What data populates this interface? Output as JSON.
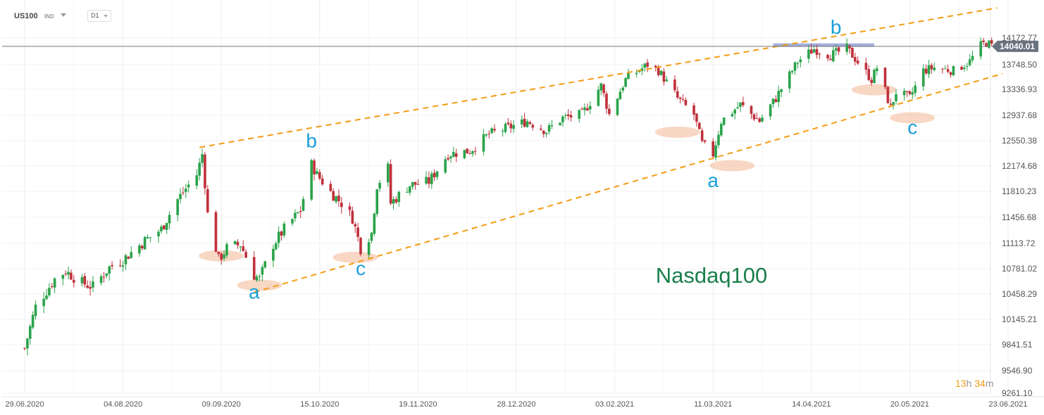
{
  "header": {
    "symbol": "US100",
    "type": "IND",
    "timeframe": "D1"
  },
  "countdown": {
    "hours": "13",
    "h_unit": "h",
    "minutes": "34",
    "m_unit": "m"
  },
  "chart_data": {
    "type": "candlestick",
    "instrument": "Nasdaq100",
    "current_price": "14040.01",
    "y_ticks": [
      "14172.77",
      "13748.50",
      "13336.93",
      "12937.68",
      "12550.38",
      "12174.68",
      "11810.23",
      "11456.68",
      "11113.72",
      "10781.02",
      "10458.29",
      "10145.21",
      "9841.51",
      "9546.90",
      "9261.10"
    ],
    "x_ticks": [
      "29.06.2020",
      "04.08.2020",
      "09.09.2020",
      "15.10.2020",
      "19.11.2020",
      "28.12.2020",
      "03.02.2021",
      "11.03.2021",
      "14.04.2021",
      "20.05.2021",
      "23.06.2021"
    ],
    "close_path": [
      [
        "2020-06-29",
        9800
      ],
      [
        "2020-07-03",
        10300
      ],
      [
        "2020-07-10",
        10650
      ],
      [
        "2020-07-14",
        10750
      ],
      [
        "2020-07-20",
        10600
      ],
      [
        "2020-07-24",
        10550
      ],
      [
        "2020-07-30",
        10800
      ],
      [
        "2020-08-04",
        10900
      ],
      [
        "2020-08-12",
        11150
      ],
      [
        "2020-08-18",
        11300
      ],
      [
        "2020-08-24",
        11700
      ],
      [
        "2020-08-31",
        12050
      ],
      [
        "2020-09-02",
        12350
      ],
      [
        "2020-09-04",
        11500
      ],
      [
        "2020-09-08",
        10900
      ],
      [
        "2020-09-11",
        11050
      ],
      [
        "2020-09-16",
        11100
      ],
      [
        "2020-09-21",
        10700
      ],
      [
        "2020-09-23",
        10650
      ],
      [
        "2020-09-28",
        11100
      ],
      [
        "2020-10-02",
        11300
      ],
      [
        "2020-10-08",
        11550
      ],
      [
        "2020-10-12",
        12200
      ],
      [
        "2020-10-14",
        12050
      ],
      [
        "2020-10-19",
        11800
      ],
      [
        "2020-10-23",
        11650
      ],
      [
        "2020-10-27",
        11450
      ],
      [
        "2020-10-30",
        11050
      ],
      [
        "2020-11-03",
        11250
      ],
      [
        "2020-11-05",
        11900
      ],
      [
        "2020-11-09",
        12150
      ],
      [
        "2020-11-10",
        11650
      ],
      [
        "2020-11-17",
        11900
      ],
      [
        "2020-11-24",
        11950
      ],
      [
        "2020-12-01",
        12350
      ],
      [
        "2020-12-09",
        12400
      ],
      [
        "2020-12-16",
        12650
      ],
      [
        "2020-12-23",
        12750
      ],
      [
        "2020-12-30",
        12850
      ],
      [
        "2021-01-06",
        12700
      ],
      [
        "2021-01-12",
        12900
      ],
      [
        "2021-01-19",
        12950
      ],
      [
        "2021-01-26",
        13400
      ],
      [
        "2021-01-29",
        12950
      ],
      [
        "2021-02-04",
        13500
      ],
      [
        "2021-02-12",
        13750
      ],
      [
        "2021-02-16",
        13650
      ],
      [
        "2021-02-23",
        13200
      ],
      [
        "2021-03-01",
        12950
      ],
      [
        "2021-03-04",
        12500
      ],
      [
        "2021-03-08",
        12350
      ],
      [
        "2021-03-11",
        12850
      ],
      [
        "2021-03-18",
        13100
      ],
      [
        "2021-03-25",
        12850
      ],
      [
        "2021-03-31",
        13200
      ],
      [
        "2021-04-08",
        13800
      ],
      [
        "2021-04-14",
        14000
      ],
      [
        "2021-04-20",
        13900
      ],
      [
        "2021-04-26",
        14000
      ],
      [
        "2021-04-29",
        13850
      ],
      [
        "2021-05-05",
        13500
      ],
      [
        "2021-05-07",
        13700
      ],
      [
        "2021-05-12",
        13050
      ],
      [
        "2021-05-14",
        13300
      ],
      [
        "2021-05-19",
        13200
      ],
      [
        "2021-05-24",
        13650
      ],
      [
        "2021-05-28",
        13700
      ],
      [
        "2021-06-04",
        13650
      ],
      [
        "2021-06-10",
        13800
      ],
      [
        "2021-06-14",
        14050
      ],
      [
        "2021-06-16",
        14100
      ],
      [
        "2021-06-18",
        14040
      ]
    ],
    "channel_lines": [
      {
        "name": "upper",
        "start": [
          "2020-09-01",
          12450
        ],
        "end": [
          "2021-06-20",
          14650
        ],
        "color": "#f39c12"
      },
      {
        "name": "lower",
        "start": [
          "2020-09-21",
          10480
        ],
        "end": [
          "2021-06-22",
          13600
        ],
        "color": "#f39c12"
      }
    ],
    "resistance": {
      "start": [
        "2021-03-30",
        14060
      ],
      "end": [
        "2021-05-06",
        14060
      ],
      "color": "#8e9bd6"
    },
    "highlights": [
      [
        "2020-09-09",
        10950
      ],
      [
        "2020-09-23",
        10570
      ],
      [
        "2020-10-28",
        10930
      ],
      [
        "2021-02-23",
        12680
      ],
      [
        "2021-03-15",
        12180
      ],
      [
        "2021-05-06",
        13330
      ],
      [
        "2021-05-20",
        12900
      ]
    ],
    "wave_labels": [
      {
        "text": "a",
        "date": "2020-09-21",
        "value": 10400
      },
      {
        "text": "b",
        "date": "2020-10-12",
        "value": 12450
      },
      {
        "text": "c",
        "date": "2020-10-30",
        "value": 10700
      },
      {
        "text": "a",
        "date": "2021-03-08",
        "value": 11870
      },
      {
        "text": "b",
        "date": "2021-04-22",
        "value": 14240
      },
      {
        "text": "c",
        "date": "2021-05-20",
        "value": 12650
      }
    ],
    "colors": {
      "up": "#2aa34a",
      "down": "#c0303b",
      "wave_label": "#1a9fd9",
      "title": "#1a7f4b",
      "price_tag": "#6b7280"
    }
  }
}
